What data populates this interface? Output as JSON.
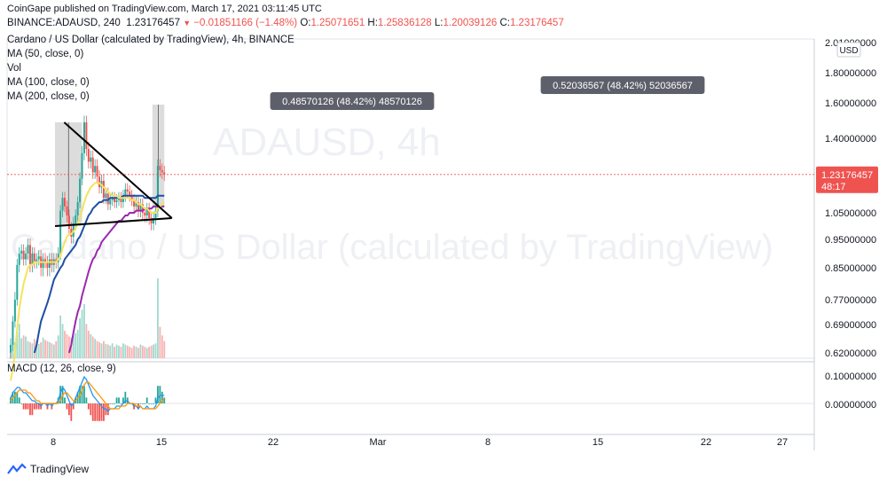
{
  "header": {
    "publisher_line": "CoinGape published on TradingView.com, March 17, 2021 03:11:45 UTC",
    "symbol": "BINANCE:ADAUSD, 240",
    "last": "1.23176457",
    "change": "−0.01851166 (−1.48%)",
    "o_label": "O:",
    "o": "1.25071651",
    "h_label": "H:",
    "h": "1.25836128",
    "l_label": "L:",
    "l": "1.20039126",
    "c_label": "C:",
    "c": "1.23176457"
  },
  "legend": {
    "title": "Cardano / US Dollar (calculated by TradingView), 4h, BINANCE",
    "ma50": "MA (50, close, 0)",
    "vol": "Vol",
    "ma100": "MA (100, close, 0)",
    "ma200": "MA (200, close, 0)"
  },
  "watermark": {
    "symbol": "ADAUSD, 4h",
    "name": "Cardano / US Dollar (calculated by TradingView)"
  },
  "macd_label": "MACD (12, 26, close, 9)",
  "annotations": {
    "left_measure": "0.48570126 (48.42%) 48570126",
    "right_measure": "0.52036567 (48.42%) 52036567"
  },
  "price_tag": {
    "value": "1.23176457",
    "countdown": "48:17"
  },
  "currency": "USD",
  "footer": {
    "brand": "TradingView"
  },
  "colors": {
    "up": "#26a69a",
    "down": "#ef5350",
    "ma50": "#f5e35c",
    "ma100": "#1e4fa3",
    "ma200": "#9c27b0",
    "macd": "#2196f3",
    "signal": "#ff9800",
    "price_tag": "#ef5350"
  },
  "chart_data": {
    "type": "line",
    "price_axis_ticks": [
      "2.01000000",
      "1.80000000",
      "1.60000000",
      "1.40000000",
      "1.05000000",
      "0.95000000",
      "0.85000000",
      "0.77000000",
      "0.69000000",
      "0.62000000"
    ],
    "macd_axis_ticks": [
      "0.10000000",
      "0.00000000"
    ],
    "x_tick_labels": [
      "8",
      "15",
      "22",
      "Mar",
      "8",
      "15",
      "22",
      "27"
    ],
    "price_series": {
      "name": "close",
      "x": [
        0,
        4,
        8,
        12,
        16,
        20,
        24,
        28,
        32,
        36,
        40,
        44,
        48,
        52,
        56,
        60,
        64,
        68,
        72,
        76,
        80,
        84,
        88,
        92,
        96,
        100,
        104,
        108,
        112,
        116,
        120,
        124,
        128,
        132,
        136,
        140,
        144,
        148,
        152,
        156,
        160,
        164,
        168,
        172,
        176,
        180,
        184,
        188,
        192,
        196,
        200,
        204,
        208,
        212,
        216,
        220,
        224,
        228,
        232,
        236,
        240,
        244,
        248,
        252,
        256,
        260,
        264,
        268,
        272,
        276,
        280,
        284
      ],
      "y": [
        0.64,
        0.7,
        0.77,
        0.86,
        0.9,
        0.91,
        0.88,
        0.9,
        0.93,
        0.86,
        0.9,
        0.87,
        0.88,
        0.89,
        0.85,
        0.88,
        0.87,
        0.85,
        0.88,
        0.86,
        0.88,
        0.87,
        0.9,
        1.06,
        1.12,
        1.08,
        1.04,
        0.99,
        0.96,
        1.01,
        1.04,
        1.1,
        1.21,
        1.33,
        1.49,
        1.35,
        1.29,
        1.31,
        1.24,
        1.27,
        1.22,
        1.17,
        1.2,
        1.12,
        1.14,
        1.09,
        1.11,
        1.12,
        1.1,
        1.11,
        1.12,
        1.1,
        1.13,
        1.16,
        1.15,
        1.13,
        1.11,
        1.08,
        1.1,
        1.06,
        1.09,
        1.05,
        1.04,
        1.07,
        1.03,
        1.01,
        1.03,
        1.06,
        1.27,
        1.25,
        1.24,
        1.23
      ]
    },
    "ma50": [
      0.55,
      0.58,
      0.62,
      0.68,
      0.74,
      0.78,
      0.81,
      0.83,
      0.85,
      0.86,
      0.86,
      0.87,
      0.87,
      0.87,
      0.87,
      0.87,
      0.87,
      0.87,
      0.87,
      0.87,
      0.87,
      0.87,
      0.88,
      0.89,
      0.92,
      0.94,
      0.96,
      0.97,
      0.97,
      0.98,
      0.99,
      1.01,
      1.03,
      1.06,
      1.1,
      1.13,
      1.15,
      1.17,
      1.18,
      1.19,
      1.19,
      1.19,
      1.18,
      1.17,
      1.16,
      1.15,
      1.14,
      1.13,
      1.13,
      1.13,
      1.12,
      1.12,
      1.12,
      1.12,
      1.12,
      1.12,
      1.11,
      1.11,
      1.1,
      1.09,
      1.09,
      1.08,
      1.07,
      1.07,
      1.06,
      1.05,
      1.05,
      1.05,
      1.07,
      1.08,
      1.09,
      1.1
    ],
    "ma100": [
      null,
      null,
      null,
      null,
      null,
      null,
      null,
      null,
      null,
      null,
      null,
      0.62,
      0.64,
      0.67,
      0.7,
      0.72,
      0.74,
      0.76,
      0.78,
      0.8,
      0.82,
      0.83,
      0.84,
      0.85,
      0.86,
      0.88,
      0.89,
      0.9,
      0.91,
      0.92,
      0.93,
      0.95,
      0.96,
      0.98,
      1.0,
      1.02,
      1.04,
      1.05,
      1.07,
      1.08,
      1.09,
      1.1,
      1.1,
      1.11,
      1.11,
      1.11,
      1.12,
      1.12,
      1.12,
      1.12,
      1.12,
      1.12,
      1.13,
      1.13,
      1.13,
      1.13,
      1.13,
      1.13,
      1.13,
      1.13,
      1.13,
      1.13,
      1.12,
      1.12,
      1.12,
      1.12,
      1.12,
      1.12,
      1.13,
      1.13,
      1.13,
      1.13
    ],
    "ma200": [
      null,
      null,
      null,
      null,
      null,
      null,
      null,
      null,
      null,
      null,
      null,
      null,
      null,
      null,
      null,
      null,
      null,
      null,
      null,
      null,
      null,
      null,
      null,
      null,
      null,
      null,
      null,
      0.62,
      0.64,
      0.67,
      0.7,
      0.73,
      0.75,
      0.78,
      0.8,
      0.82,
      0.84,
      0.86,
      0.88,
      0.89,
      0.91,
      0.92,
      0.94,
      0.95,
      0.96,
      0.97,
      0.98,
      0.99,
      1.0,
      1.01,
      1.02,
      1.02,
      1.03,
      1.04,
      1.04,
      1.05,
      1.05,
      1.05,
      1.06,
      1.06,
      1.06,
      1.06,
      1.07,
      1.07,
      1.07,
      1.07,
      1.08,
      1.08,
      1.08,
      1.08,
      1.08,
      1.08
    ],
    "volume": [
      22,
      30,
      28,
      45,
      60,
      35,
      40,
      38,
      30,
      28,
      26,
      34,
      30,
      25,
      28,
      36,
      32,
      30,
      28,
      26,
      24,
      30,
      40,
      75,
      60,
      48,
      42,
      38,
      36,
      40,
      44,
      50,
      70,
      85,
      95,
      60,
      48,
      42,
      38,
      34,
      30,
      28,
      26,
      30,
      25,
      24,
      22,
      26,
      20,
      24,
      22,
      20,
      26,
      24,
      22,
      20,
      18,
      22,
      20,
      18,
      24,
      22,
      20,
      18,
      20,
      22,
      24,
      26,
      140,
      55,
      40,
      30
    ],
    "macd": [
      0.02,
      0.04,
      0.05,
      0.06,
      0.06,
      0.05,
      0.04,
      0.04,
      0.03,
      0.02,
      0.01,
      0.01,
      0.0,
      0.0,
      -0.01,
      0.0,
      0.0,
      -0.01,
      0.0,
      -0.01,
      0.0,
      0.0,
      0.01,
      0.04,
      0.06,
      0.05,
      0.03,
      0.01,
      -0.01,
      0.0,
      0.02,
      0.04,
      0.06,
      0.08,
      0.1,
      0.09,
      0.07,
      0.05,
      0.03,
      0.02,
      0.01,
      0.0,
      -0.01,
      -0.02,
      -0.02,
      -0.03,
      -0.02,
      -0.02,
      -0.02,
      -0.01,
      -0.01,
      -0.01,
      0.0,
      0.01,
      0.01,
      0.0,
      0.0,
      -0.01,
      -0.01,
      -0.02,
      -0.01,
      -0.02,
      -0.02,
      -0.01,
      -0.02,
      -0.02,
      -0.02,
      -0.01,
      0.02,
      0.03,
      0.03,
      0.03
    ],
    "signal": [
      0.01,
      0.02,
      0.03,
      0.04,
      0.05,
      0.05,
      0.05,
      0.05,
      0.04,
      0.04,
      0.03,
      0.02,
      0.01,
      0.01,
      0.0,
      0.0,
      0.0,
      0.0,
      0.0,
      0.0,
      0.0,
      0.0,
      0.0,
      0.01,
      0.03,
      0.04,
      0.04,
      0.03,
      0.02,
      0.01,
      0.01,
      0.02,
      0.03,
      0.05,
      0.07,
      0.08,
      0.08,
      0.07,
      0.06,
      0.05,
      0.04,
      0.03,
      0.02,
      0.01,
      0.0,
      -0.01,
      -0.02,
      -0.02,
      -0.02,
      -0.02,
      -0.02,
      -0.01,
      -0.01,
      -0.01,
      0.0,
      0.0,
      0.0,
      0.0,
      -0.01,
      -0.01,
      -0.01,
      -0.02,
      -0.02,
      -0.02,
      -0.02,
      -0.02,
      -0.02,
      -0.02,
      -0.01,
      0.0,
      0.01,
      0.02
    ],
    "trendlines": [
      {
        "name": "descending resistance",
        "from": [
          99,
          1.49
        ],
        "to": [
          298,
          1.03
        ]
      },
      {
        "name": "horizontal support",
        "from": [
          82,
          1.0
        ],
        "to": [
          298,
          1.03
        ]
      }
    ],
    "measure_boxes": [
      {
        "x0": 82,
        "x1": 132,
        "y0": 1.0,
        "y1": 1.49
      },
      {
        "x0": 262,
        "x1": 284,
        "y0": 1.07,
        "y1": 1.59
      }
    ]
  }
}
